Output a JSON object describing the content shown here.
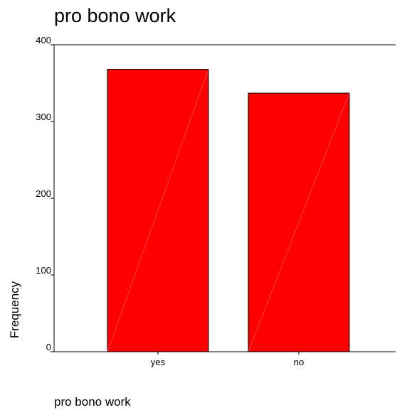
{
  "chart_data": {
    "type": "bar",
    "title": "pro bono work",
    "xlabel": "pro bono work",
    "ylabel": "Frequency",
    "categories": [
      "yes",
      "no"
    ],
    "values": [
      368,
      337
    ],
    "ylim": [
      0,
      400
    ],
    "yticks": [
      0,
      100,
      200,
      300,
      400
    ],
    "grid": false,
    "legend": "none",
    "bar_color": "#ff0000",
    "bar_edge_color": "#000000"
  }
}
